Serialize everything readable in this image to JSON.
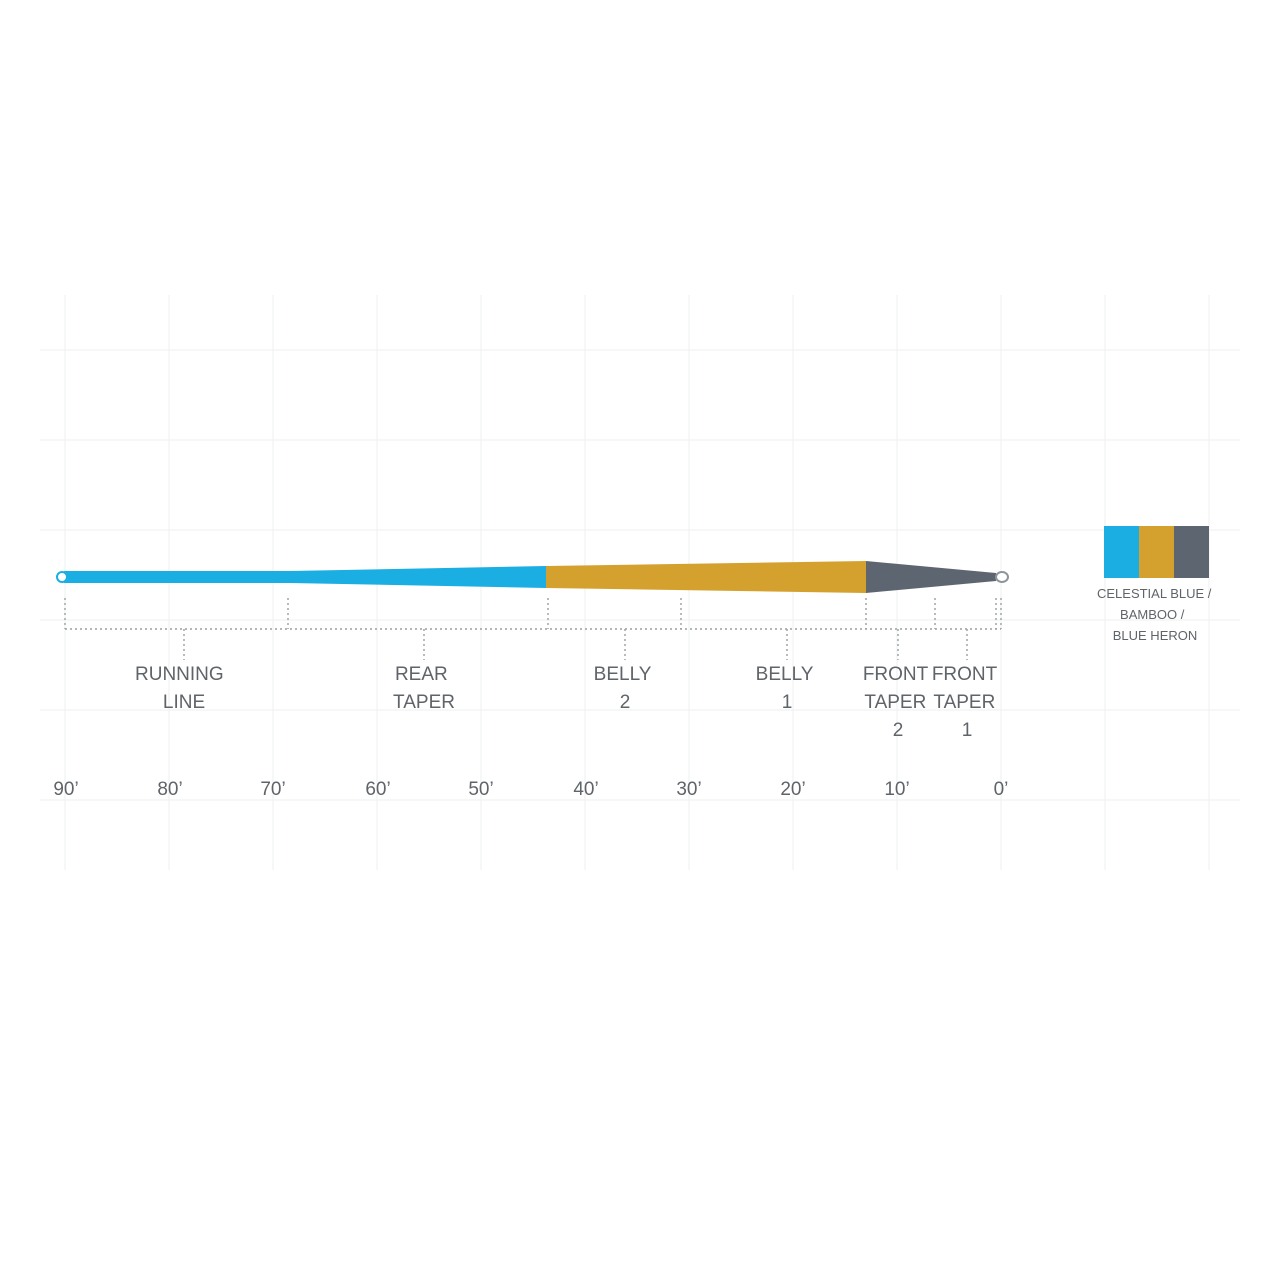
{
  "colors": {
    "celestial_blue": "#1aaee3",
    "bamboo": "#d4a12e",
    "blue_heron": "#5d6670",
    "tip_grey": "#8c949c",
    "text": "#5f6469"
  },
  "sections": [
    {
      "id": "running-line",
      "lines": [
        "RUNNING",
        "LINE"
      ]
    },
    {
      "id": "rear-taper",
      "lines": [
        "REAR",
        "TAPER"
      ]
    },
    {
      "id": "belly-2",
      "lines": [
        "BELLY",
        "2"
      ]
    },
    {
      "id": "belly-1",
      "lines": [
        "BELLY",
        "1"
      ]
    },
    {
      "id": "front-taper-2",
      "lines": [
        "FRONT",
        "TAPER",
        "2"
      ]
    },
    {
      "id": "front-taper-1",
      "lines": [
        "FRONT",
        "TAPER",
        "1"
      ]
    }
  ],
  "distance_labels": [
    "90’",
    "80’",
    "70’",
    "60’",
    "50’",
    "40’",
    "30’",
    "20’",
    "10’",
    "0’"
  ],
  "legend": {
    "swatches": [
      "celestial_blue",
      "bamboo",
      "blue_heron"
    ],
    "lines": [
      "CELESTIAL BLUE /",
      "BAMBOO /",
      "BLUE HERON"
    ]
  }
}
